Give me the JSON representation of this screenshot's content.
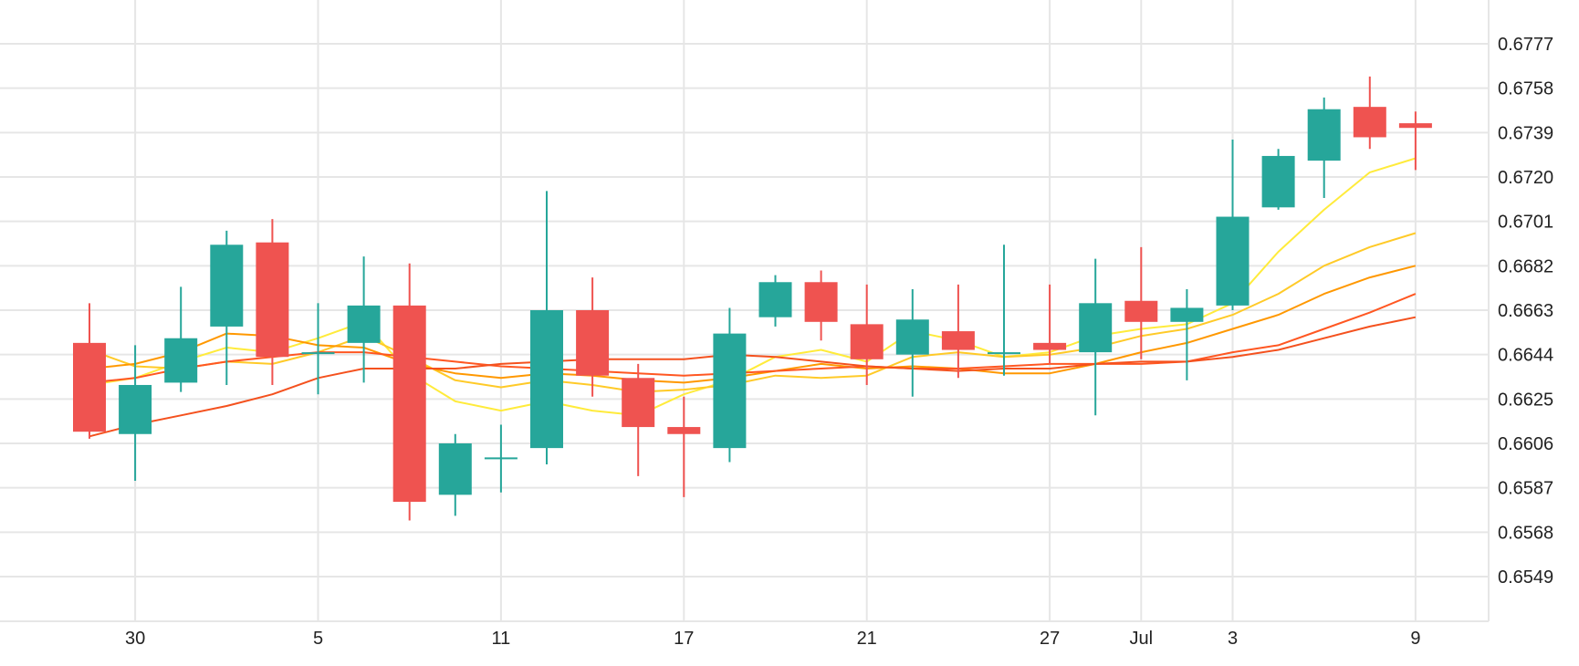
{
  "chart_data": {
    "type": "candlestick",
    "title": "",
    "xlabel": "",
    "ylabel": "",
    "ylim": [
      0.653,
      0.6795
    ],
    "grid": true,
    "y_ticks": [
      "0.6777",
      "0.6758",
      "0.6739",
      "0.6720",
      "0.6701",
      "0.6682",
      "0.6663",
      "0.6644",
      "0.6625",
      "0.6606",
      "0.6587",
      "0.6568",
      "0.6549"
    ],
    "x_tick_labels": [
      {
        "index": 1,
        "label": "30"
      },
      {
        "index": 5,
        "label": "5"
      },
      {
        "index": 9,
        "label": "11"
      },
      {
        "index": 13,
        "label": "17"
      },
      {
        "index": 17,
        "label": "21"
      },
      {
        "index": 21,
        "label": "27"
      },
      {
        "index": 23,
        "label": "Jul"
      },
      {
        "index": 25,
        "label": "3"
      },
      {
        "index": 29,
        "label": "9"
      }
    ],
    "colors": {
      "up": "#26a69a",
      "down": "#ef5350"
    },
    "candles": [
      {
        "open": 0.6649,
        "high": 0.6666,
        "low": 0.6608,
        "close": 0.6611
      },
      {
        "open": 0.661,
        "high": 0.6648,
        "low": 0.659,
        "close": 0.6631
      },
      {
        "open": 0.6632,
        "high": 0.6673,
        "low": 0.6628,
        "close": 0.6651
      },
      {
        "open": 0.6656,
        "high": 0.6697,
        "low": 0.6631,
        "close": 0.6691
      },
      {
        "open": 0.6692,
        "high": 0.6702,
        "low": 0.6631,
        "close": 0.6643
      },
      {
        "open": 0.6645,
        "high": 0.6666,
        "low": 0.6627,
        "close": 0.6645
      },
      {
        "open": 0.6649,
        "high": 0.6686,
        "low": 0.6632,
        "close": 0.6665
      },
      {
        "open": 0.6665,
        "high": 0.6683,
        "low": 0.6573,
        "close": 0.6581
      },
      {
        "open": 0.6584,
        "high": 0.661,
        "low": 0.6575,
        "close": 0.6606
      },
      {
        "open": 0.66,
        "high": 0.6614,
        "low": 0.6585,
        "close": 0.66
      },
      {
        "open": 0.6604,
        "high": 0.6714,
        "low": 0.6597,
        "close": 0.6663
      },
      {
        "open": 0.6663,
        "high": 0.6677,
        "low": 0.6626,
        "close": 0.6635
      },
      {
        "open": 0.6634,
        "high": 0.664,
        "low": 0.6592,
        "close": 0.6613
      },
      {
        "open": 0.6613,
        "high": 0.6626,
        "low": 0.6583,
        "close": 0.661
      },
      {
        "open": 0.6604,
        "high": 0.6664,
        "low": 0.6598,
        "close": 0.6653
      },
      {
        "open": 0.666,
        "high": 0.6678,
        "low": 0.6656,
        "close": 0.6675
      },
      {
        "open": 0.6675,
        "high": 0.668,
        "low": 0.665,
        "close": 0.6658
      },
      {
        "open": 0.6657,
        "high": 0.6674,
        "low": 0.6631,
        "close": 0.6642
      },
      {
        "open": 0.6644,
        "high": 0.6672,
        "low": 0.6626,
        "close": 0.6659
      },
      {
        "open": 0.6654,
        "high": 0.6674,
        "low": 0.6634,
        "close": 0.6646
      },
      {
        "open": 0.6645,
        "high": 0.6691,
        "low": 0.6635,
        "close": 0.6645
      },
      {
        "open": 0.6649,
        "high": 0.6674,
        "low": 0.664,
        "close": 0.6646
      },
      {
        "open": 0.6645,
        "high": 0.6685,
        "low": 0.6618,
        "close": 0.6666
      },
      {
        "open": 0.6667,
        "high": 0.669,
        "low": 0.6642,
        "close": 0.6658
      },
      {
        "open": 0.6658,
        "high": 0.6672,
        "low": 0.6633,
        "close": 0.6664
      },
      {
        "open": 0.6665,
        "high": 0.6736,
        "low": 0.6663,
        "close": 0.6703
      },
      {
        "open": 0.6707,
        "high": 0.6732,
        "low": 0.6706,
        "close": 0.6729
      },
      {
        "open": 0.6727,
        "high": 0.6754,
        "low": 0.6711,
        "close": 0.6749
      },
      {
        "open": 0.675,
        "high": 0.6763,
        "low": 0.6732,
        "close": 0.6737
      },
      {
        "open": 0.6743,
        "high": 0.6748,
        "low": 0.6723,
        "close": 0.6741
      }
    ],
    "series": [
      {
        "color": "#ffeb3b",
        "values": [
          0.6631,
          0.6634,
          0.6641,
          0.6647,
          0.6645,
          0.6651,
          0.6658,
          0.6636,
          0.6624,
          0.662,
          0.6624,
          0.662,
          0.6618,
          0.6627,
          0.6633,
          0.6643,
          0.6646,
          0.6641,
          0.6654,
          0.665,
          0.6643,
          0.6645,
          0.6652,
          0.6655,
          0.6657,
          0.6666,
          0.6688,
          0.6706,
          0.6722,
          0.6728
        ]
      },
      {
        "color": "#ffca28",
        "values": [
          0.6646,
          0.6639,
          0.6638,
          0.6641,
          0.664,
          0.6645,
          0.6652,
          0.6643,
          0.6633,
          0.663,
          0.6633,
          0.6631,
          0.6628,
          0.6629,
          0.6631,
          0.6635,
          0.6634,
          0.6635,
          0.6643,
          0.6645,
          0.6643,
          0.6644,
          0.6647,
          0.6652,
          0.6655,
          0.6661,
          0.667,
          0.6682,
          0.669,
          0.6696
        ]
      },
      {
        "color": "#ff9800",
        "values": [
          0.6638,
          0.664,
          0.6645,
          0.6653,
          0.6652,
          0.6648,
          0.6647,
          0.664,
          0.6636,
          0.6634,
          0.6636,
          0.6635,
          0.6633,
          0.6632,
          0.6634,
          0.6637,
          0.664,
          0.6638,
          0.6639,
          0.6638,
          0.6636,
          0.6636,
          0.664,
          0.6645,
          0.6649,
          0.6655,
          0.6661,
          0.667,
          0.6677,
          0.6682
        ]
      },
      {
        "color": "#ff5722",
        "values": [
          0.6632,
          0.6634,
          0.6638,
          0.6641,
          0.6643,
          0.6645,
          0.6645,
          0.6643,
          0.6641,
          0.6639,
          0.6638,
          0.6637,
          0.6636,
          0.6635,
          0.6636,
          0.6637,
          0.6638,
          0.6639,
          0.6638,
          0.6638,
          0.6639,
          0.664,
          0.664,
          0.664,
          0.6641,
          0.6645,
          0.6648,
          0.6655,
          0.6662,
          0.667
        ]
      },
      {
        "color": "#f4511e",
        "values": [
          0.6609,
          0.6614,
          0.6618,
          0.6622,
          0.6627,
          0.6634,
          0.6638,
          0.6638,
          0.6638,
          0.664,
          0.6641,
          0.6642,
          0.6642,
          0.6642,
          0.6644,
          0.6643,
          0.6641,
          0.6639,
          0.6638,
          0.6637,
          0.6638,
          0.6638,
          0.664,
          0.6641,
          0.6641,
          0.6643,
          0.6646,
          0.6651,
          0.6656,
          0.666
        ]
      }
    ]
  }
}
